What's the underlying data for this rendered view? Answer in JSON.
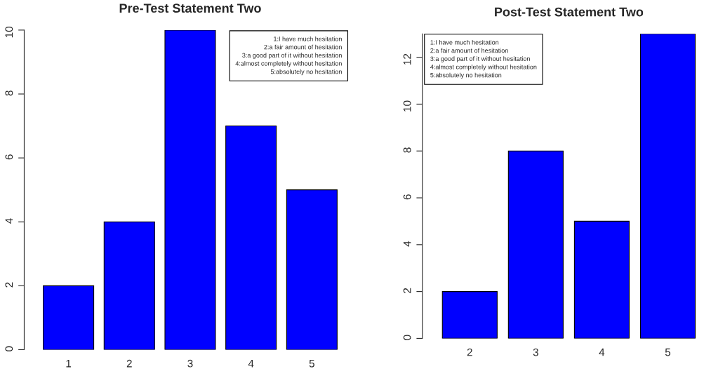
{
  "chart_data": [
    {
      "type": "bar",
      "title": "Pre-Test Statement Two",
      "categories": [
        "1",
        "2",
        "3",
        "4",
        "5"
      ],
      "values": [
        2,
        4,
        10,
        7,
        5
      ],
      "color": "#0000ff",
      "ylim": [
        0,
        10
      ],
      "yticks": [
        0,
        2,
        4,
        6,
        8,
        10
      ],
      "grid": false,
      "annotations": [
        "1:I have much hesitation\n2:a fair amount of hesitation\n3:a good part of it without hesitation\n4:almost completely without hesitation\n5:absolutely no hesitation"
      ]
    },
    {
      "type": "bar",
      "title": "Post-Test Statement Two",
      "categories": [
        "2",
        "3",
        "4",
        "5"
      ],
      "values": [
        2,
        8,
        5,
        13
      ],
      "color": "#0000ff",
      "ylim": [
        0,
        13
      ],
      "yticks": [
        0,
        2,
        4,
        6,
        8,
        10,
        12
      ],
      "grid": false,
      "annotations": [
        "1:I have much hesitation\n2:a fair amount of hesitation\n3:a good part of it without hesitation\n4:almost completely without hesitation\n5:absolutely no hesitation"
      ]
    }
  ]
}
